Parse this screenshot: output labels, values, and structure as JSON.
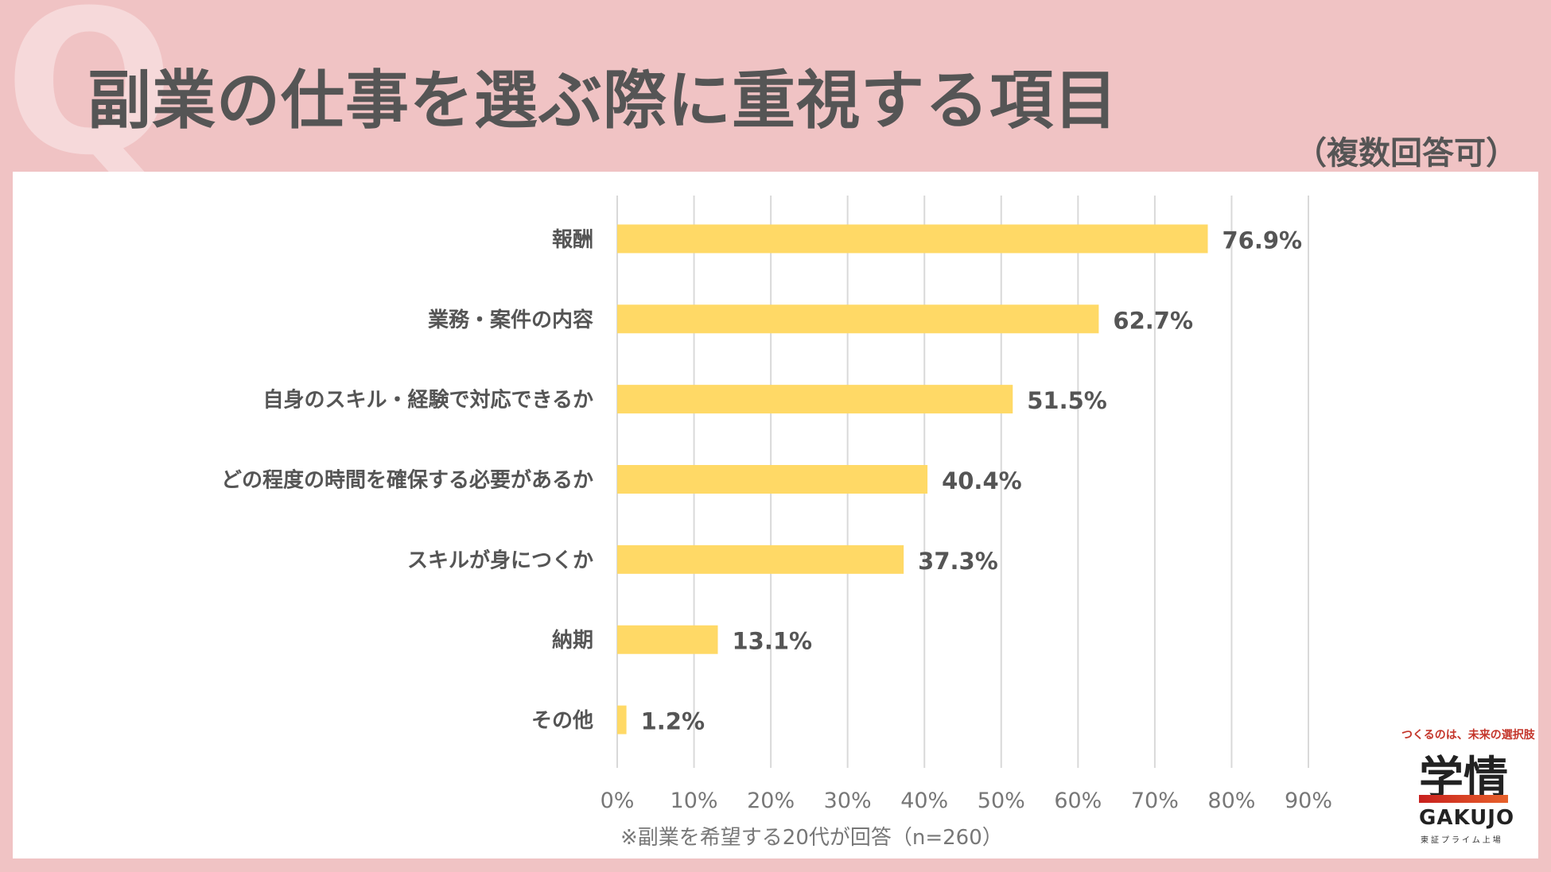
{
  "header": {
    "q_mark": "Q",
    "title": "副業の仕事を選ぶ際に重視する項目",
    "subtitle": "（複数回答可）"
  },
  "footnote": "※副業を希望する20代が回答（n=260）",
  "logo": {
    "tagline": "つくるのは、未来の選択肢",
    "name": "学情",
    "name_en": "GAKUJO",
    "sub": "東証プライム上場"
  },
  "colors": {
    "bar": "#ffd966",
    "background": "#f0c3c4",
    "grid": "#d9d9d9",
    "text": "#555555"
  },
  "chart_data": {
    "type": "bar",
    "orientation": "horizontal",
    "categories": [
      "報酬",
      "業務・案件の内容",
      "自身のスキル・経験で対応できるか",
      "どの程度の時間を確保する必要があるか",
      "スキルが身につくか",
      "納期",
      "その他"
    ],
    "values": [
      76.9,
      62.7,
      51.5,
      40.4,
      37.3,
      13.1,
      1.2
    ],
    "value_labels": [
      "76.9%",
      "62.7%",
      "51.5%",
      "40.4%",
      "37.3%",
      "13.1%",
      "1.2%"
    ],
    "xlim": [
      0,
      90
    ],
    "ticks": [
      0,
      10,
      20,
      30,
      40,
      50,
      60,
      70,
      80,
      90
    ],
    "tick_labels": [
      "0%",
      "10%",
      "20%",
      "30%",
      "40%",
      "50%",
      "60%",
      "70%",
      "80%",
      "90%"
    ],
    "grid": true
  }
}
